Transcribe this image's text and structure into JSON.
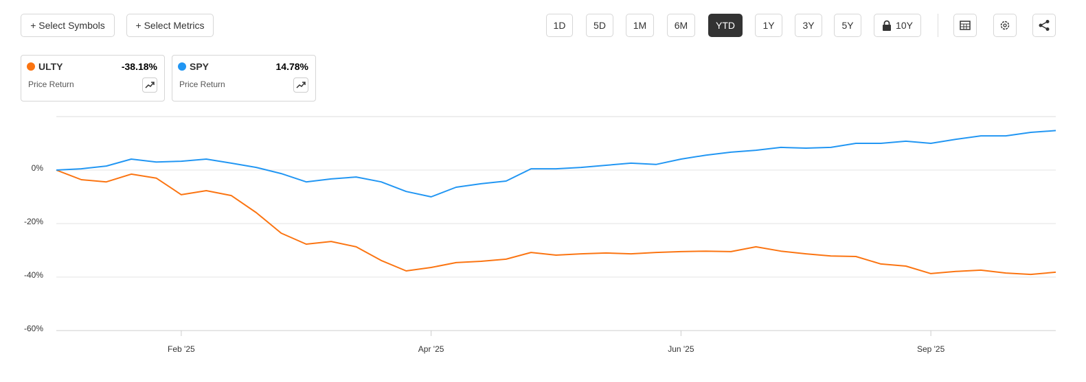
{
  "toolbar": {
    "left_buttons": [
      "+ Select Symbols",
      "+ Select Metrics"
    ],
    "ranges": [
      "1D",
      "5D",
      "1M",
      "6M",
      "YTD",
      "1Y",
      "3Y",
      "5Y",
      "10Y"
    ],
    "active_range": "YTD"
  },
  "chart_data": {
    "type": "line",
    "categories": [
      null,
      null,
      null,
      null,
      null,
      "Feb '25",
      null,
      null,
      null,
      null,
      null,
      null,
      null,
      null,
      null,
      "Apr '25",
      null,
      null,
      null,
      null,
      null,
      null,
      null,
      null,
      null,
      "Jun '25",
      null,
      null,
      null,
      null,
      null,
      null,
      null,
      null,
      null,
      "Sep '25",
      null,
      null,
      null,
      null,
      null
    ],
    "series": [
      {
        "name": "ULTY",
        "color": "#fb7411",
        "values": [
          0,
          -3.6,
          -4.4,
          -1.5,
          -3,
          -9.2,
          -7.7,
          -9.5,
          -15.9,
          -23.6,
          -27.7,
          -26.7,
          -28.7,
          -33.8,
          -37.7,
          -36.4,
          -34.6,
          -34.1,
          -33.3,
          -30.8,
          -31.8,
          -31.3,
          -31,
          -31.3,
          -30.8,
          -30.5,
          -30.3,
          -30.5,
          -28.7,
          -30.3,
          -31.3,
          -32.1,
          -32.3,
          -35.1,
          -35.9,
          -38.7,
          -37.9,
          -37.4,
          -38.5,
          -39,
          -38.18
        ]
      },
      {
        "name": "SPY",
        "color": "#2196f3",
        "values": [
          0,
          0.5,
          1.5,
          4.1,
          3,
          3.3,
          4.1,
          2.6,
          1,
          -1.3,
          -4.4,
          -3.3,
          -2.6,
          -4.4,
          -8,
          -10,
          -6.4,
          -5.1,
          -4.1,
          0.5,
          0.5,
          1,
          1.8,
          2.6,
          2.1,
          4.1,
          5.6,
          6.7,
          7.4,
          8.5,
          8.2,
          8.5,
          10,
          10,
          10.8,
          10,
          11.5,
          12.8,
          12.8,
          14.1,
          14.78
        ]
      }
    ],
    "legend_cards": [
      {
        "change": "-38.18%",
        "metric": "Price Return"
      },
      {
        "change": "14.78%",
        "metric": "Price Return"
      }
    ],
    "ylim": [
      -60,
      20
    ],
    "yticks": [
      {
        "value": 0,
        "label": "0%"
      },
      {
        "value": -20,
        "label": "-20%"
      },
      {
        "value": -40,
        "label": "-40%"
      },
      {
        "value": -60,
        "label": "-60%"
      }
    ],
    "grid": true
  }
}
